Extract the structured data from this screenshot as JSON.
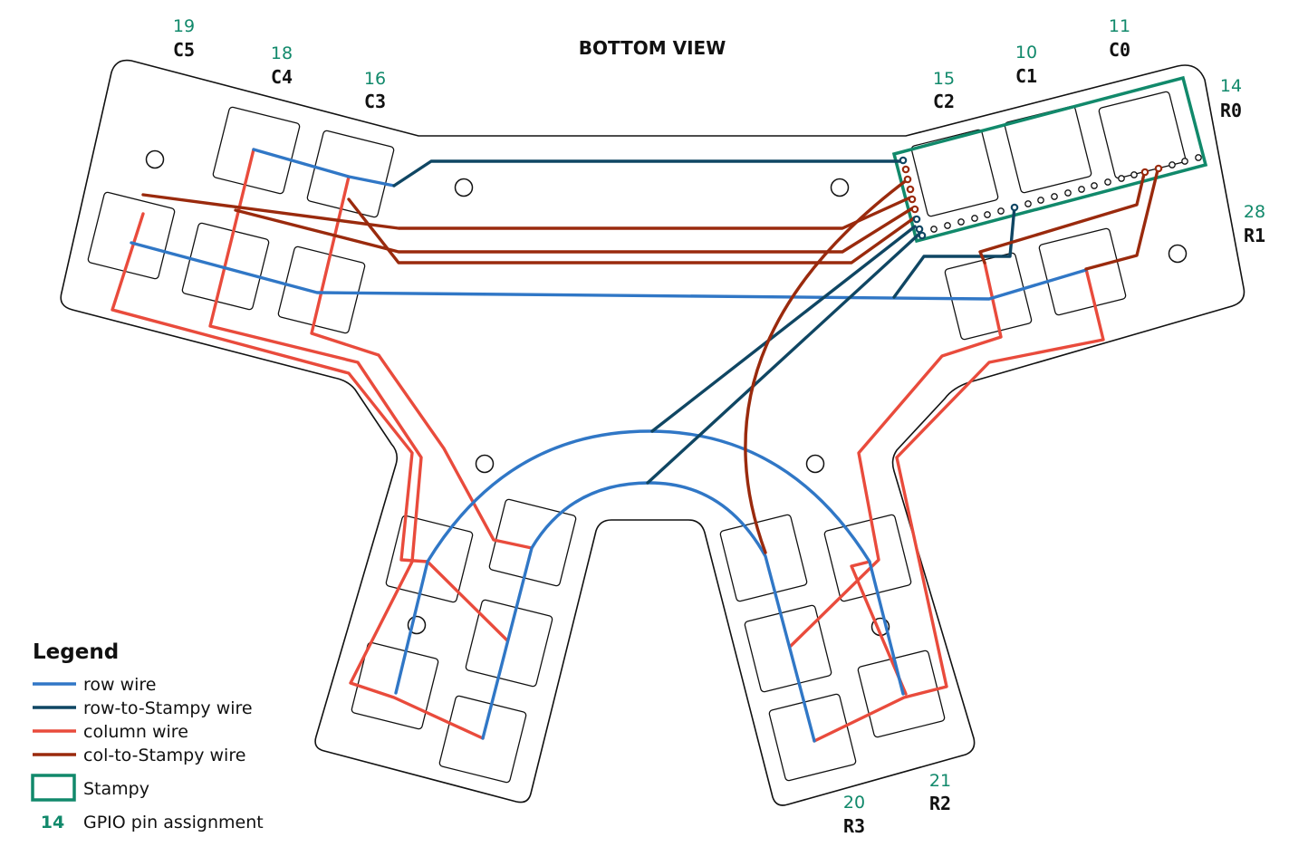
{
  "title": "BOTTOM VIEW",
  "colors": {
    "row_wire": "#3077c6",
    "row_to_stampy_wire": "#0f4663",
    "column_wire": "#e94b3c",
    "col_to_stampy_wire": "#9a2a0d",
    "stampy": "#11896b",
    "gpio_text": "#11896b"
  },
  "pins": {
    "c5": {
      "gpio": "19",
      "name": "C5"
    },
    "c4": {
      "gpio": "18",
      "name": "C4"
    },
    "c3": {
      "gpio": "16",
      "name": "C3"
    },
    "c2": {
      "gpio": "15",
      "name": "C2"
    },
    "c1": {
      "gpio": "10",
      "name": "C1"
    },
    "c0": {
      "gpio": "11",
      "name": "C0"
    },
    "r0": {
      "gpio": "14",
      "name": "R0"
    },
    "r1": {
      "gpio": "28",
      "name": "R1"
    },
    "r2": {
      "gpio": "21",
      "name": "R2"
    },
    "r3": {
      "gpio": "20",
      "name": "R3"
    }
  },
  "legend": {
    "title": "Legend",
    "row_wire": "row wire",
    "row_to_stampy_wire": "row-to-Stampy wire",
    "column_wire": "column wire",
    "col_to_stampy_wire": "col-to-Stampy wire",
    "stampy": "Stampy",
    "gpio_example": "14",
    "gpio_text": "GPIO pin assignment"
  }
}
